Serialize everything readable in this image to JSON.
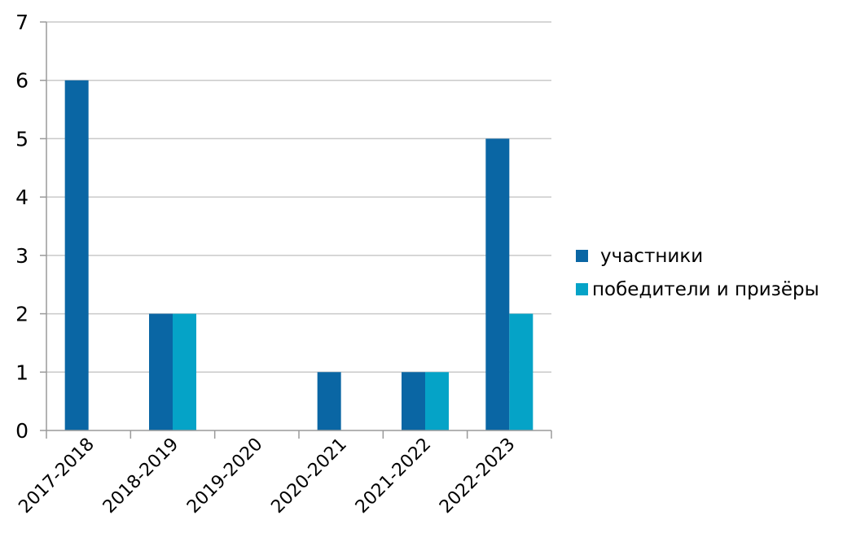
{
  "chart_data": {
    "type": "bar",
    "title": "",
    "xlabel": "",
    "ylabel": "",
    "categories": [
      "2017-2018",
      "2018-2019",
      "2019-2020",
      "2020-2021",
      "2021-2022",
      "2022-2023"
    ],
    "series": [
      {
        "name": "участники",
        "values": [
          6,
          2,
          0,
          1,
          1,
          5
        ],
        "color": "#0A66A4"
      },
      {
        "name": "победители и призёры",
        "values": [
          0,
          2,
          0,
          0,
          1,
          2
        ],
        "color": "#05A3C7"
      }
    ],
    "ylim": [
      0,
      7
    ],
    "yticks": [
      "0",
      "1",
      "2",
      "3",
      "4",
      "5",
      "6",
      "7"
    ],
    "grid": true,
    "legend_position": "right",
    "colors": {
      "grid": "#c9c9c9",
      "axis": "#9a9a9a"
    }
  }
}
